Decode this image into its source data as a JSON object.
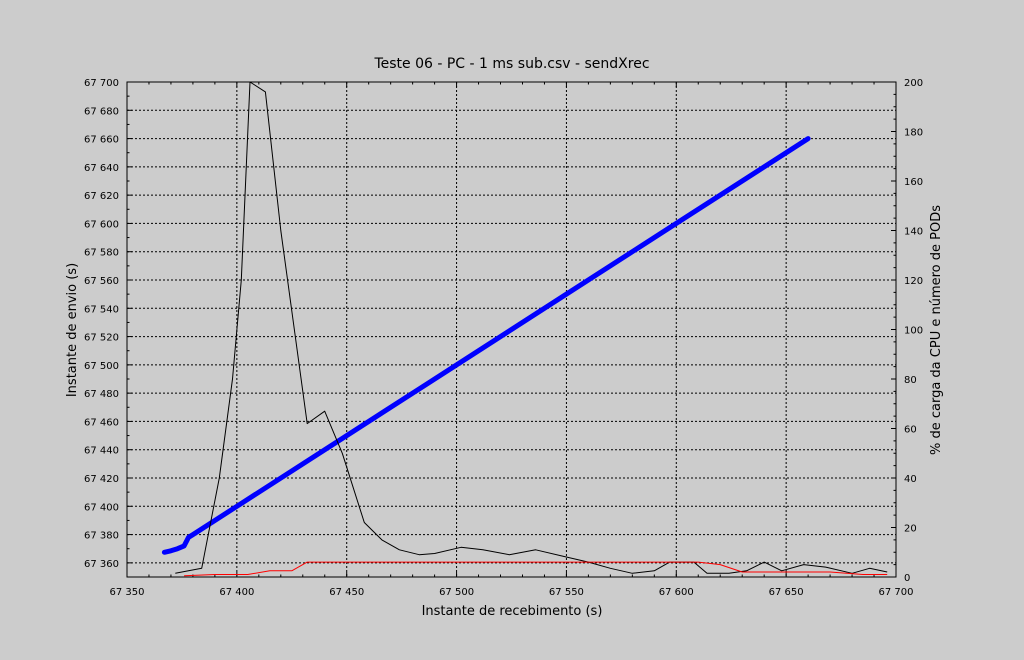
{
  "chart_data": {
    "type": "line",
    "title": "Teste 06 - PC - 1 ms sub.csv - sendXrec",
    "xlabel": "Instante de recebimento (s)",
    "ylabel": "Instante de envio (s)",
    "y2label": "% de carga da CPU  e número de PODs",
    "xlim": [
      67350,
      67700
    ],
    "ylim": [
      67350,
      67700
    ],
    "y2lim": [
      0,
      200
    ],
    "x_ticks": [
      67350,
      67400,
      67450,
      67500,
      67550,
      67600,
      67650,
      67700
    ],
    "x_tick_labels": [
      "67 350",
      "67 400",
      "67 450",
      "67 500",
      "67 550",
      "67 600",
      "67 650",
      "67 700"
    ],
    "y_ticks": [
      67360,
      67380,
      67400,
      67420,
      67440,
      67460,
      67480,
      67500,
      67520,
      67540,
      67560,
      67580,
      67600,
      67620,
      67640,
      67660,
      67680,
      67700
    ],
    "y_tick_labels": [
      "67 360",
      "67 380",
      "67 400",
      "67 420",
      "67 440",
      "67 460",
      "67 480",
      "67 500",
      "67 520",
      "67 540",
      "67 560",
      "67 580",
      "67 600",
      "67 620",
      "67 640",
      "67 660",
      "67 680",
      "67 700"
    ],
    "y2_ticks": [
      0,
      20,
      40,
      60,
      80,
      100,
      120,
      140,
      160,
      180,
      200
    ],
    "y2_tick_labels": [
      "0",
      "20",
      "40",
      "60",
      "80",
      "100",
      "120",
      "140",
      "160",
      "180",
      "200"
    ],
    "grid": true,
    "legend": "none",
    "series": [
      {
        "axis": "left",
        "color": "#0000ff",
        "style": "thick",
        "points": [
          [
            67367,
            67367.5
          ],
          [
            67370,
            67368.5
          ],
          [
            67373,
            67370
          ],
          [
            67376,
            67372
          ],
          [
            67377,
            67375
          ],
          [
            67378,
            67378
          ],
          [
            67380,
            67380
          ],
          [
            67400,
            67400
          ],
          [
            67450,
            67450
          ],
          [
            67500,
            67500
          ],
          [
            67550,
            67550
          ],
          [
            67600,
            67600
          ],
          [
            67660,
            67660
          ]
        ]
      },
      {
        "axis": "right",
        "color": "#000000",
        "style": "thin",
        "points": [
          [
            67372,
            1.5
          ],
          [
            67384,
            3.5
          ],
          [
            67392,
            40
          ],
          [
            67398,
            80
          ],
          [
            67402,
            120
          ],
          [
            67406,
            200
          ],
          [
            67413,
            196
          ],
          [
            67420,
            140
          ],
          [
            67432,
            62
          ],
          [
            67440,
            67
          ],
          [
            67448,
            50
          ],
          [
            67458,
            22
          ],
          [
            67466,
            15
          ],
          [
            67474,
            11
          ],
          [
            67483,
            9
          ],
          [
            67490,
            9.5
          ],
          [
            67502,
            12
          ],
          [
            67512,
            11
          ],
          [
            67524,
            9
          ],
          [
            67536,
            11
          ],
          [
            67548,
            8.5
          ],
          [
            67560,
            6
          ],
          [
            67570,
            3.5
          ],
          [
            67580,
            1.5
          ],
          [
            67590,
            2.5
          ],
          [
            67597,
            6
          ],
          [
            67608,
            6
          ],
          [
            67614,
            1.5
          ],
          [
            67624,
            1.5
          ],
          [
            67632,
            2.5
          ],
          [
            67640,
            6
          ],
          [
            67648,
            2.5
          ],
          [
            67658,
            5
          ],
          [
            67668,
            4
          ],
          [
            67680,
            1.5
          ],
          [
            67688,
            3.5
          ],
          [
            67696,
            2
          ]
        ]
      },
      {
        "axis": "right",
        "color": "#ff0000",
        "style": "thin",
        "points": [
          [
            67376,
            0.5
          ],
          [
            67390,
            1
          ],
          [
            67405,
            1
          ],
          [
            67415,
            2.5
          ],
          [
            67425,
            2.5
          ],
          [
            67432,
            6
          ],
          [
            67445,
            6
          ],
          [
            67600,
            6
          ],
          [
            67610,
            6
          ],
          [
            67620,
            5
          ],
          [
            67630,
            2
          ],
          [
            67650,
            2
          ],
          [
            67670,
            2
          ],
          [
            67685,
            1
          ],
          [
            67696,
            1
          ]
        ]
      }
    ]
  }
}
